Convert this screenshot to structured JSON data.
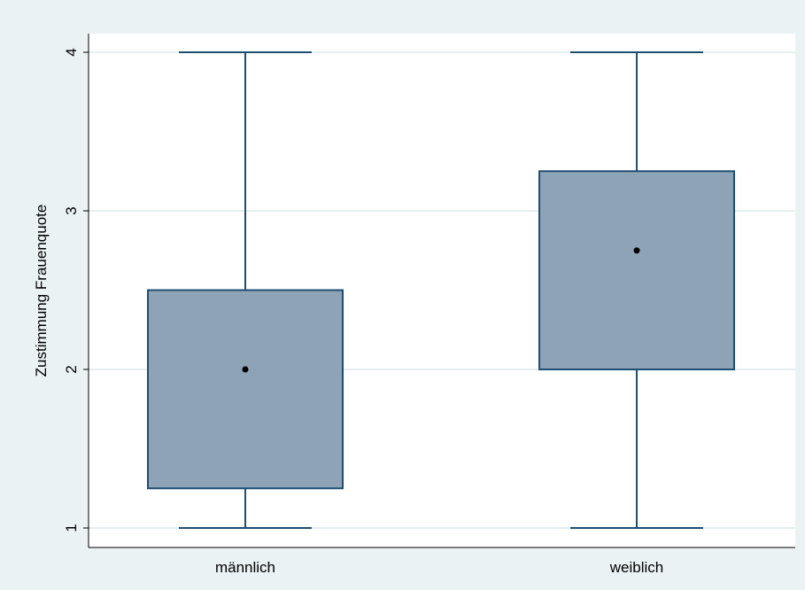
{
  "chart_data": {
    "type": "box",
    "title": "",
    "xlabel": "",
    "ylabel": "Zustimmung Frauenquote",
    "ylim": [
      1,
      4
    ],
    "yticks": [
      1,
      2,
      3,
      4
    ],
    "grid": true,
    "legend": "none",
    "categories": [
      "männlich",
      "weiblich"
    ],
    "boxes": [
      {
        "category": "männlich",
        "min": 1,
        "q1": 1.25,
        "median": 2,
        "q3": 2.5,
        "max": 4
      },
      {
        "category": "weiblich",
        "min": 1,
        "q1": 2,
        "median": 2.75,
        "q3": 3.25,
        "max": 4
      }
    ],
    "colors": {
      "box_fill": "#8ea3b5",
      "box_line": "#1f4e73",
      "median_marker": "#000000",
      "grid": "#dde8ea",
      "plot_bg": "#ffffff",
      "outer_bg": "#eaf2f3"
    }
  }
}
